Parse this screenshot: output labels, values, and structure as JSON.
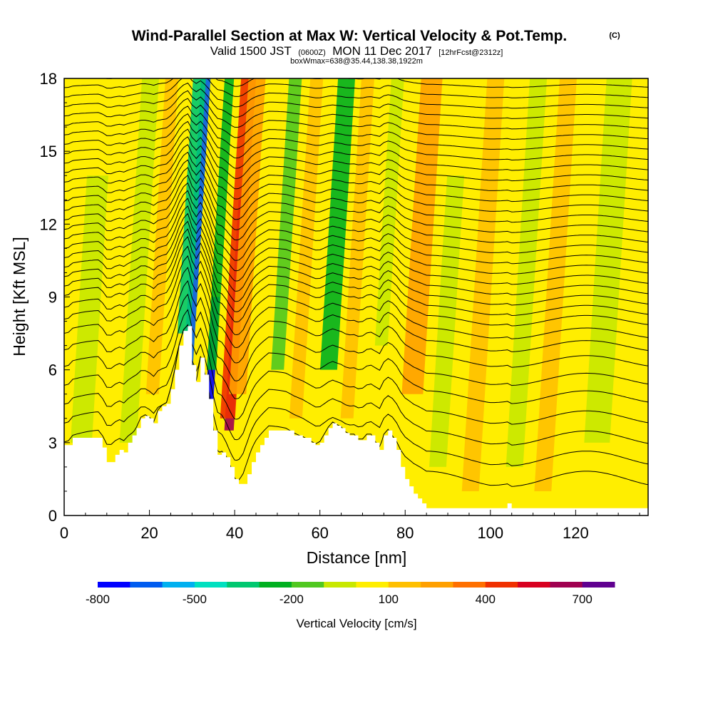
{
  "title": {
    "main": "Wind-Parallel Section at Max W: Vertical Velocity & Pot.Temp.",
    "copyright": "(C)",
    "valid_prefix": "Valid 1500 JST",
    "valid_utc": "(0600Z)",
    "valid_date": "MON 11 Dec 2017",
    "forecast": "[12hrFcst@2312z]",
    "box": "boxWmax=638@35.44,138.38,1922m"
  },
  "chart_data": {
    "type": "heatmap",
    "xlabel": "Distance [nm]",
    "ylabel": "Height [Kft MSL]",
    "xlim": [
      0,
      137
    ],
    "ylim": [
      0,
      18
    ],
    "x_ticks": [
      "0",
      "20",
      "40",
      "60",
      "80",
      "100",
      "120"
    ],
    "x_tick_values": [
      0,
      20,
      40,
      60,
      80,
      100,
      120
    ],
    "y_ticks": [
      "0",
      "3",
      "6",
      "9",
      "12",
      "15",
      "18"
    ],
    "y_tick_values": [
      0,
      3,
      6,
      9,
      12,
      15,
      18
    ],
    "colorbar": {
      "label": "Vertical Velocity [cm/s]",
      "levels": [
        -800,
        -700,
        -600,
        -500,
        -400,
        -300,
        -200,
        -100,
        0,
        100,
        200,
        300,
        400,
        500,
        600,
        700,
        800
      ],
      "tick_labels": [
        "-800",
        "-500",
        "-200",
        "100",
        "400",
        "700"
      ],
      "tick_values": [
        -800,
        -500,
        -200,
        100,
        400,
        700
      ],
      "colors": [
        "#0000ff",
        "#005cf0",
        "#00b0f0",
        "#00e0c0",
        "#00c870",
        "#00b020",
        "#50c820",
        "#c8e800",
        "#ffee00",
        "#ffc000",
        "#ffa000",
        "#ff7000",
        "#f03000",
        "#d80020",
        "#a00050",
        "#600090"
      ]
    },
    "terrain_kft": {
      "x": [
        0,
        1,
        2,
        5,
        8,
        9,
        10,
        11,
        12,
        13,
        14,
        15,
        16,
        17,
        18,
        19,
        20,
        21,
        22,
        23,
        24,
        25,
        26,
        27,
        28,
        29,
        30,
        31,
        32,
        33,
        34,
        35,
        36,
        37,
        38,
        39,
        40,
        41,
        42,
        43,
        44,
        45,
        46,
        47,
        48,
        50,
        52,
        54,
        56,
        58,
        59,
        60,
        61,
        62,
        63,
        64,
        65,
        66,
        67,
        68,
        69,
        70,
        71,
        72,
        73,
        74,
        75,
        76,
        77,
        78,
        79,
        80,
        81,
        82,
        83,
        84,
        85,
        86,
        88,
        90,
        100,
        104,
        105,
        106,
        110,
        120,
        130,
        137
      ],
      "y": [
        2.9,
        2.9,
        3.2,
        3.2,
        3.2,
        2.8,
        2.2,
        2.2,
        2.5,
        2.7,
        2.6,
        3.0,
        3.3,
        3.6,
        4.0,
        4.1,
        4.0,
        3.8,
        4.3,
        4.5,
        4.6,
        5.2,
        6.0,
        7.0,
        7.6,
        7.8,
        6.2,
        5.5,
        6.5,
        5.8,
        4.8,
        3.5,
        2.5,
        2.6,
        2.4,
        2.0,
        1.5,
        1.3,
        1.3,
        1.7,
        2.2,
        2.6,
        2.9,
        3.2,
        3.5,
        3.5,
        3.5,
        3.3,
        3.2,
        3.0,
        2.9,
        3.0,
        3.3,
        3.6,
        3.8,
        3.7,
        3.6,
        3.4,
        3.3,
        3.3,
        3.1,
        3.1,
        3.3,
        3.3,
        3.0,
        2.7,
        3.3,
        3.5,
        3.2,
        2.7,
        2.0,
        1.5,
        1.2,
        0.9,
        0.7,
        0.5,
        0.3,
        0.3,
        0.3,
        0.3,
        0.3,
        0.5,
        0.3,
        0.3,
        0.3,
        0.3,
        0.3,
        0.3
      ]
    },
    "velocity_bands": [
      {
        "x": 28.0,
        "w": 2.2,
        "v": -700,
        "from": 4.5,
        "to": 18
      },
      {
        "x": 26.5,
        "w": 3.0,
        "v": -350,
        "from": 7.5,
        "to": 18
      },
      {
        "x": 33.5,
        "w": 1.8,
        "v": -750,
        "from": 3.8,
        "to": 9
      },
      {
        "x": 33.5,
        "w": 2.2,
        "v": -300,
        "from": 6,
        "to": 18
      },
      {
        "x": 38.5,
        "w": 2.2,
        "v": 650,
        "from": 3.5,
        "to": 13
      },
      {
        "x": 38.0,
        "w": 3.5,
        "v": 450,
        "from": 4,
        "to": 18
      },
      {
        "x": 40.0,
        "w": 4.0,
        "v": 250,
        "from": 5,
        "to": 18
      },
      {
        "x": 49.0,
        "w": 3.0,
        "v": -150,
        "from": 6,
        "to": 18
      },
      {
        "x": 54.0,
        "w": 3.0,
        "v": 150,
        "from": 4,
        "to": 18
      },
      {
        "x": 61.0,
        "w": 4.0,
        "v": -220,
        "from": 6,
        "to": 18
      },
      {
        "x": 66.0,
        "w": 3.0,
        "v": 150,
        "from": 4,
        "to": 18
      },
      {
        "x": 73.0,
        "w": 3.0,
        "v": -100,
        "from": 7,
        "to": 18
      },
      {
        "x": 81.0,
        "w": 5.0,
        "v": 260,
        "from": 5,
        "to": 18
      },
      {
        "x": 88.0,
        "w": 4.0,
        "v": -80,
        "from": 2,
        "to": 14
      },
      {
        "x": 96.0,
        "w": 4.0,
        "v": 110,
        "from": 1,
        "to": 18
      },
      {
        "x": 106.0,
        "w": 4.0,
        "v": -60,
        "from": 2,
        "to": 18
      },
      {
        "x": 113.0,
        "w": 4.0,
        "v": 110,
        "from": 1,
        "to": 18
      },
      {
        "x": 125.0,
        "w": 6.0,
        "v": -60,
        "from": 3,
        "to": 18
      },
      {
        "x": 15.0,
        "w": 4.0,
        "v": -80,
        "from": 3,
        "to": 18
      },
      {
        "x": 20.0,
        "w": 3.0,
        "v": 130,
        "from": 5,
        "to": 18
      },
      {
        "x": 4.0,
        "w": 5.0,
        "v": -60,
        "from": 3,
        "to": 14
      }
    ],
    "isentrope_levels": [
      2.5,
      3.3,
      4.1,
      4.9,
      5.7,
      6.4,
      7.1,
      7.7,
      8.2,
      8.7,
      9.1,
      9.5,
      9.9,
      10.3,
      10.7,
      11.1,
      11.5,
      11.9,
      12.3,
      12.7,
      13.1,
      13.5,
      13.9,
      14.3,
      14.7,
      15.1,
      15.5,
      15.9,
      16.3,
      16.7,
      17.1,
      17.5,
      17.9
    ]
  }
}
